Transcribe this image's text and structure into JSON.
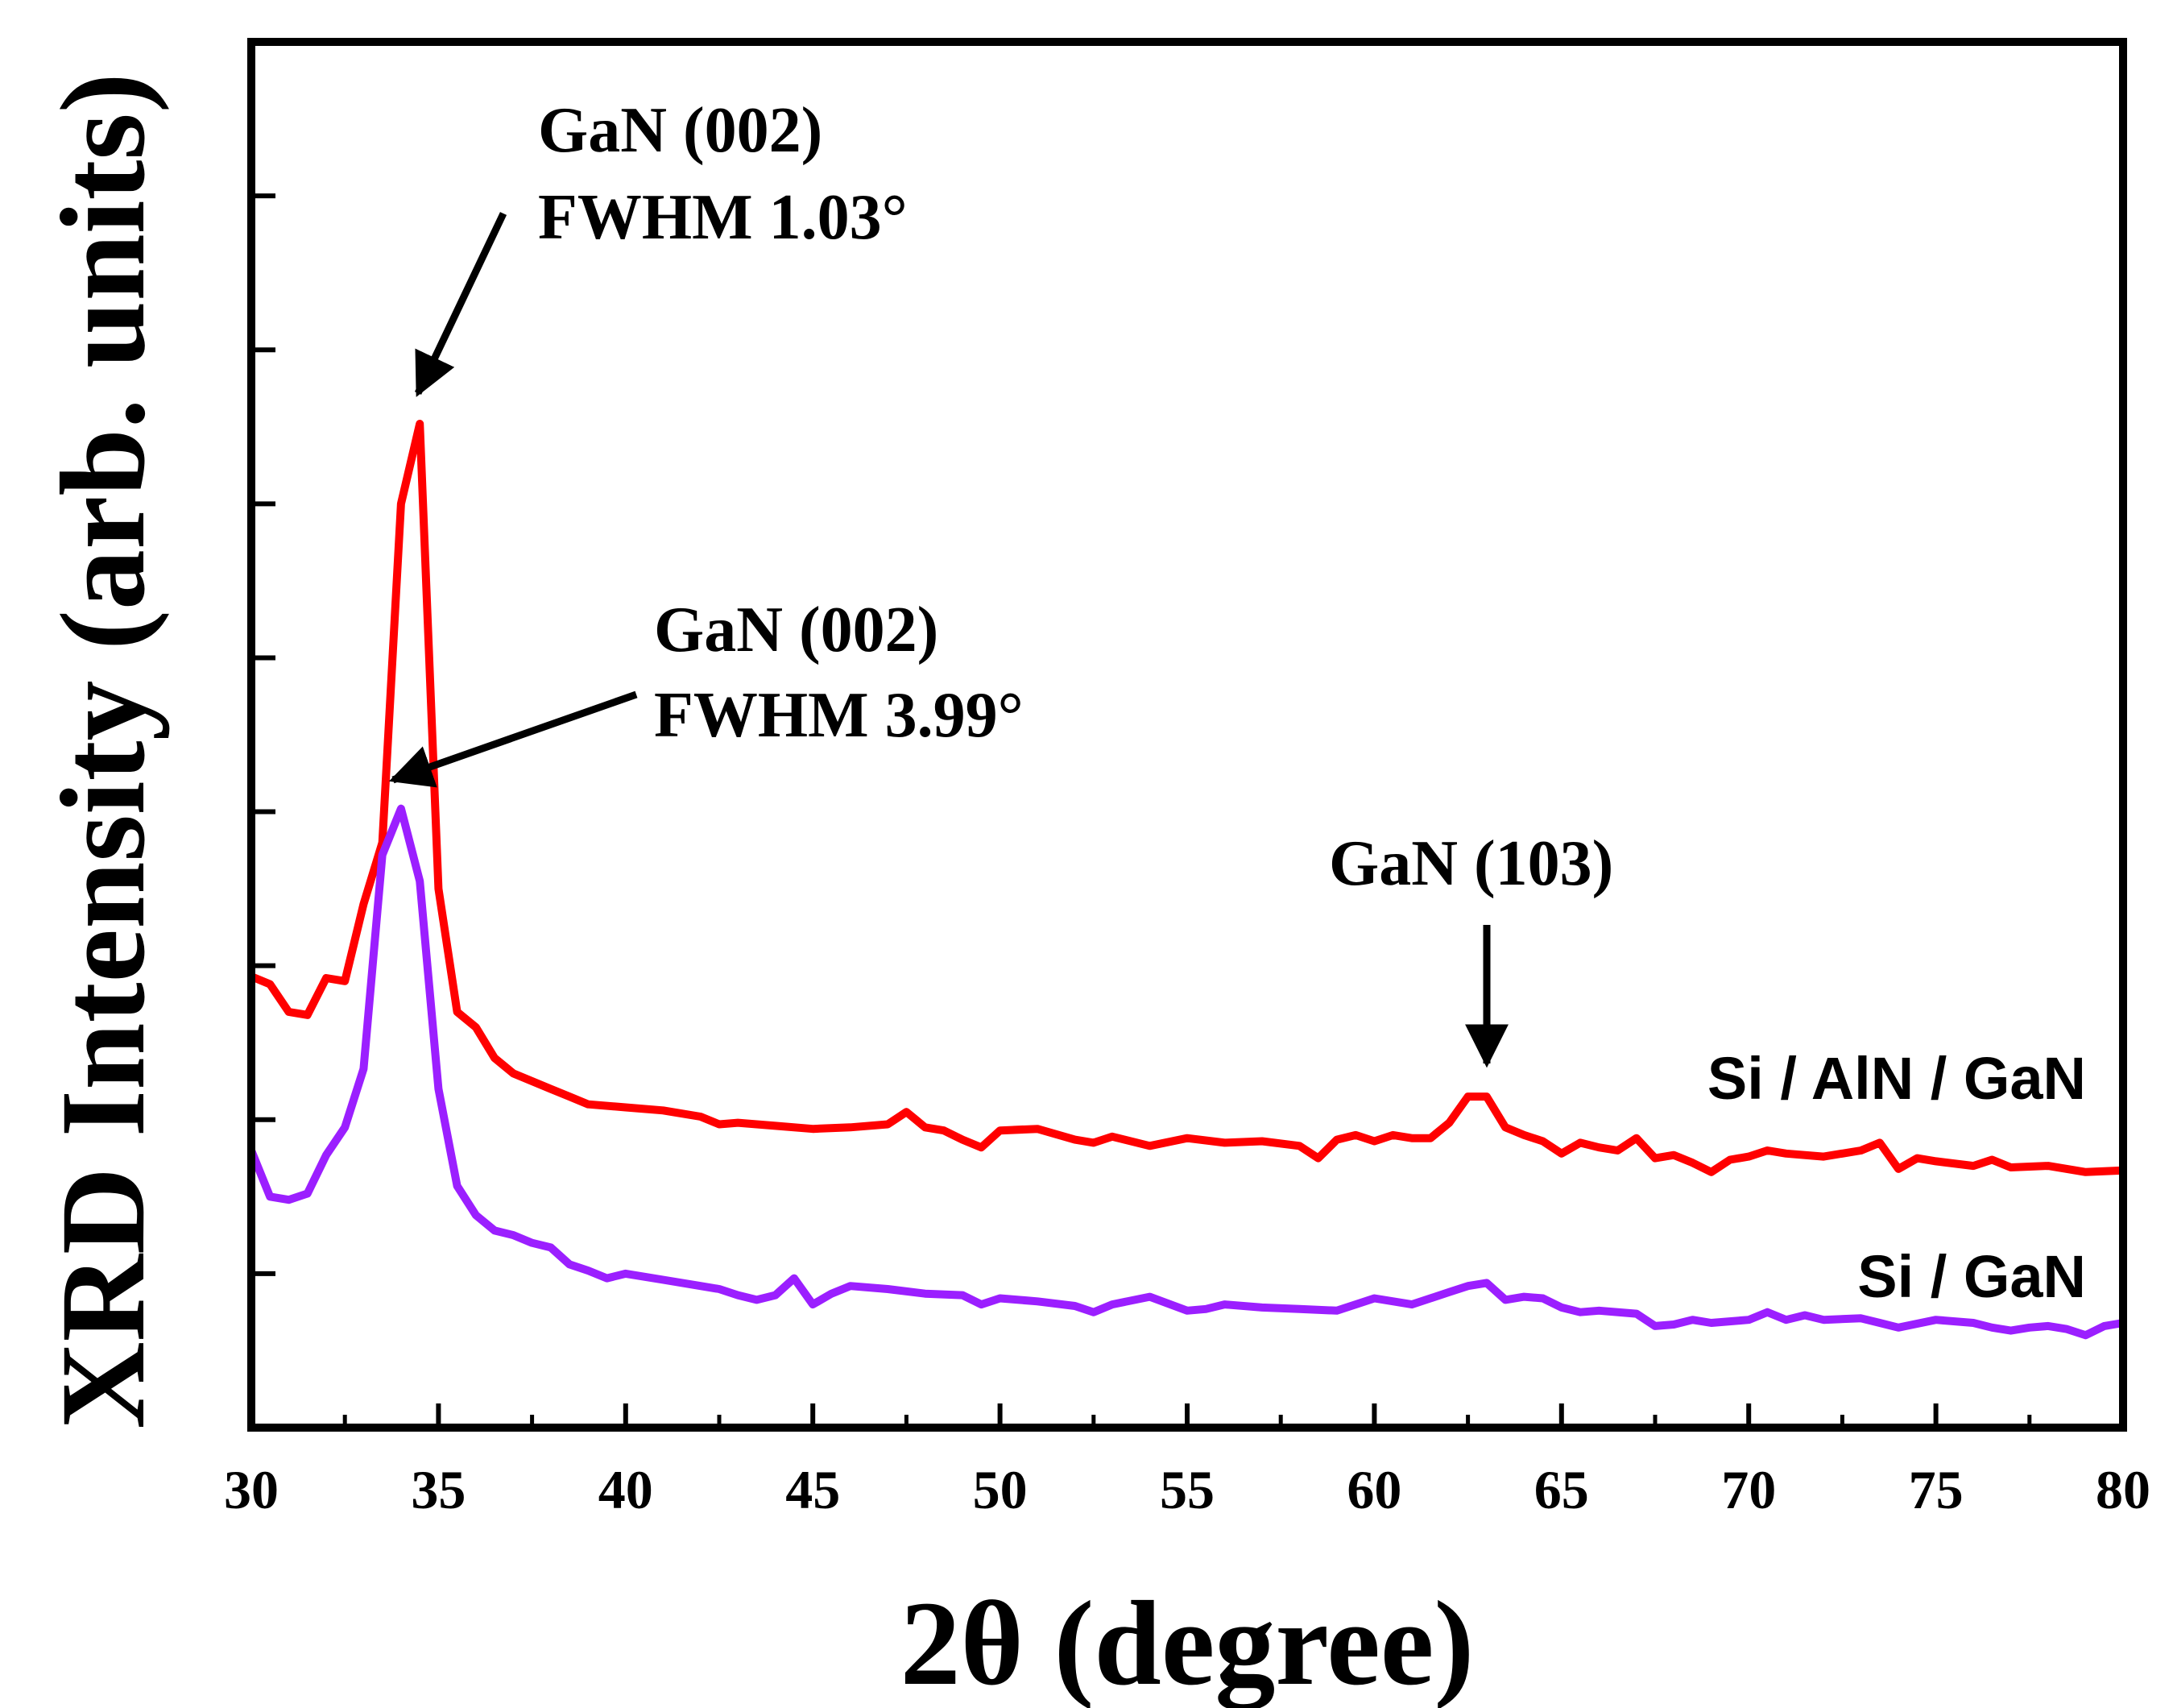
{
  "chart_data": {
    "type": "line",
    "title": "",
    "xlabel": "2θ (degree)",
    "ylabel": "XRD Intensity (arb. units)",
    "xlim": [
      30,
      80
    ],
    "ylim": [
      0,
      9
    ],
    "x_ticks": [
      30,
      35,
      40,
      45,
      50,
      55,
      60,
      65,
      70,
      75,
      80
    ],
    "x_tick_labels": [
      "30",
      "35",
      "40",
      "45",
      "50",
      "55",
      "60",
      "65",
      "70",
      "75",
      "80"
    ],
    "y_ticks": [
      1,
      2,
      3,
      4,
      5,
      6,
      7,
      8
    ],
    "grid": false,
    "series": [
      {
        "name": "Si / AlN / GaN",
        "color": "#ff0000",
        "points": [
          [
            30,
            2.93
          ],
          [
            30.5,
            2.88
          ],
          [
            31,
            2.7
          ],
          [
            31.5,
            2.68
          ],
          [
            32,
            2.92
          ],
          [
            32.5,
            2.9
          ],
          [
            33,
            3.4
          ],
          [
            33.5,
            3.8
          ],
          [
            34,
            6.0
          ],
          [
            34.5,
            6.52
          ],
          [
            35,
            3.5
          ],
          [
            35.5,
            2.7
          ],
          [
            36,
            2.6
          ],
          [
            36.5,
            2.4
          ],
          [
            37,
            2.3
          ],
          [
            37.5,
            2.25
          ],
          [
            38,
            2.2
          ],
          [
            38.5,
            2.15
          ],
          [
            39,
            2.1
          ],
          [
            40,
            2.08
          ],
          [
            41,
            2.06
          ],
          [
            42,
            2.02
          ],
          [
            42.5,
            1.97
          ],
          [
            43,
            1.98
          ],
          [
            44,
            1.96
          ],
          [
            45,
            1.94
          ],
          [
            46,
            1.95
          ],
          [
            47,
            1.97
          ],
          [
            47.5,
            2.05
          ],
          [
            48,
            1.95
          ],
          [
            48.5,
            1.93
          ],
          [
            49,
            1.87
          ],
          [
            49.5,
            1.82
          ],
          [
            50,
            1.93
          ],
          [
            51,
            1.94
          ],
          [
            52,
            1.87
          ],
          [
            52.5,
            1.85
          ],
          [
            53,
            1.89
          ],
          [
            54,
            1.83
          ],
          [
            55,
            1.88
          ],
          [
            56,
            1.85
          ],
          [
            57,
            1.86
          ],
          [
            58,
            1.83
          ],
          [
            58.5,
            1.75
          ],
          [
            59,
            1.87
          ],
          [
            59.5,
            1.9
          ],
          [
            60,
            1.86
          ],
          [
            60.5,
            1.9
          ],
          [
            61,
            1.88
          ],
          [
            61.5,
            1.88
          ],
          [
            62,
            1.98
          ],
          [
            62.5,
            2.15
          ],
          [
            63,
            2.15
          ],
          [
            63.5,
            1.95
          ],
          [
            64,
            1.9
          ],
          [
            64.5,
            1.86
          ],
          [
            65,
            1.78
          ],
          [
            65.5,
            1.85
          ],
          [
            66,
            1.82
          ],
          [
            66.5,
            1.8
          ],
          [
            67,
            1.88
          ],
          [
            67.5,
            1.75
          ],
          [
            68,
            1.77
          ],
          [
            68.5,
            1.72
          ],
          [
            69,
            1.66
          ],
          [
            69.5,
            1.74
          ],
          [
            70,
            1.76
          ],
          [
            70.5,
            1.8
          ],
          [
            71,
            1.78
          ],
          [
            72,
            1.76
          ],
          [
            73,
            1.8
          ],
          [
            73.5,
            1.85
          ],
          [
            74,
            1.68
          ],
          [
            74.5,
            1.75
          ],
          [
            75,
            1.73
          ],
          [
            76,
            1.7
          ],
          [
            76.5,
            1.74
          ],
          [
            77,
            1.69
          ],
          [
            78,
            1.7
          ],
          [
            78.5,
            1.68
          ],
          [
            79,
            1.66
          ],
          [
            80,
            1.67
          ]
        ]
      },
      {
        "name": "Si / GaN",
        "color": "#9b1fff",
        "points": [
          [
            30,
            1.8
          ],
          [
            30.5,
            1.5
          ],
          [
            31,
            1.48
          ],
          [
            31.5,
            1.52
          ],
          [
            32,
            1.77
          ],
          [
            32.5,
            1.95
          ],
          [
            33,
            2.33
          ],
          [
            33.5,
            3.72
          ],
          [
            34,
            4.02
          ],
          [
            34.5,
            3.55
          ],
          [
            35,
            2.2
          ],
          [
            35.5,
            1.57
          ],
          [
            36,
            1.38
          ],
          [
            36.5,
            1.28
          ],
          [
            37,
            1.25
          ],
          [
            37.5,
            1.2
          ],
          [
            38,
            1.17
          ],
          [
            38.5,
            1.06
          ],
          [
            39,
            1.02
          ],
          [
            39.5,
            0.97
          ],
          [
            40,
            1.0
          ],
          [
            41,
            0.96
          ],
          [
            42,
            0.92
          ],
          [
            42.5,
            0.9
          ],
          [
            43,
            0.86
          ],
          [
            43.5,
            0.83
          ],
          [
            44,
            0.86
          ],
          [
            44.5,
            0.97
          ],
          [
            45,
            0.8
          ],
          [
            45.5,
            0.87
          ],
          [
            46,
            0.92
          ],
          [
            47,
            0.9
          ],
          [
            48,
            0.87
          ],
          [
            49,
            0.86
          ],
          [
            49.5,
            0.8
          ],
          [
            50,
            0.84
          ],
          [
            51,
            0.82
          ],
          [
            52,
            0.79
          ],
          [
            52.5,
            0.75
          ],
          [
            53,
            0.8
          ],
          [
            54,
            0.85
          ],
          [
            55,
            0.76
          ],
          [
            55.5,
            0.77
          ],
          [
            56,
            0.8
          ],
          [
            57,
            0.78
          ],
          [
            58,
            0.77
          ],
          [
            59,
            0.76
          ],
          [
            59.5,
            0.8
          ],
          [
            60,
            0.84
          ],
          [
            61,
            0.8
          ],
          [
            62,
            0.88
          ],
          [
            62.5,
            0.92
          ],
          [
            63,
            0.94
          ],
          [
            63.5,
            0.83
          ],
          [
            64,
            0.85
          ],
          [
            64.5,
            0.84
          ],
          [
            65,
            0.78
          ],
          [
            65.5,
            0.75
          ],
          [
            66,
            0.76
          ],
          [
            67,
            0.74
          ],
          [
            67.5,
            0.66
          ],
          [
            68,
            0.67
          ],
          [
            68.5,
            0.7
          ],
          [
            69,
            0.68
          ],
          [
            70,
            0.7
          ],
          [
            70.5,
            0.75
          ],
          [
            71,
            0.7
          ],
          [
            71.5,
            0.73
          ],
          [
            72,
            0.7
          ],
          [
            73,
            0.71
          ],
          [
            73.5,
            0.68
          ],
          [
            74,
            0.65
          ],
          [
            75,
            0.7
          ],
          [
            76,
            0.68
          ],
          [
            76.5,
            0.65
          ],
          [
            77,
            0.63
          ],
          [
            77.5,
            0.65
          ],
          [
            78,
            0.66
          ],
          [
            78.5,
            0.64
          ],
          [
            79,
            0.6
          ],
          [
            79.5,
            0.66
          ],
          [
            80,
            0.68
          ]
        ]
      }
    ],
    "annotations": [
      {
        "id": "peak-002-top",
        "lines": [
          "GaN (002)",
          "FWHM 1.03°"
        ],
        "target": [
          34.5,
          6.52
        ]
      },
      {
        "id": "peak-002-bottom",
        "lines": [
          "GaN (002)",
          "FWHM 3.99°"
        ],
        "target": [
          33.7,
          4.02
        ]
      },
      {
        "id": "peak-103",
        "lines": [
          "GaN (103)"
        ],
        "target": [
          63.0,
          2.15
        ]
      }
    ],
    "series_labels": [
      "Si / AlN / GaN",
      "Si / GaN"
    ]
  }
}
